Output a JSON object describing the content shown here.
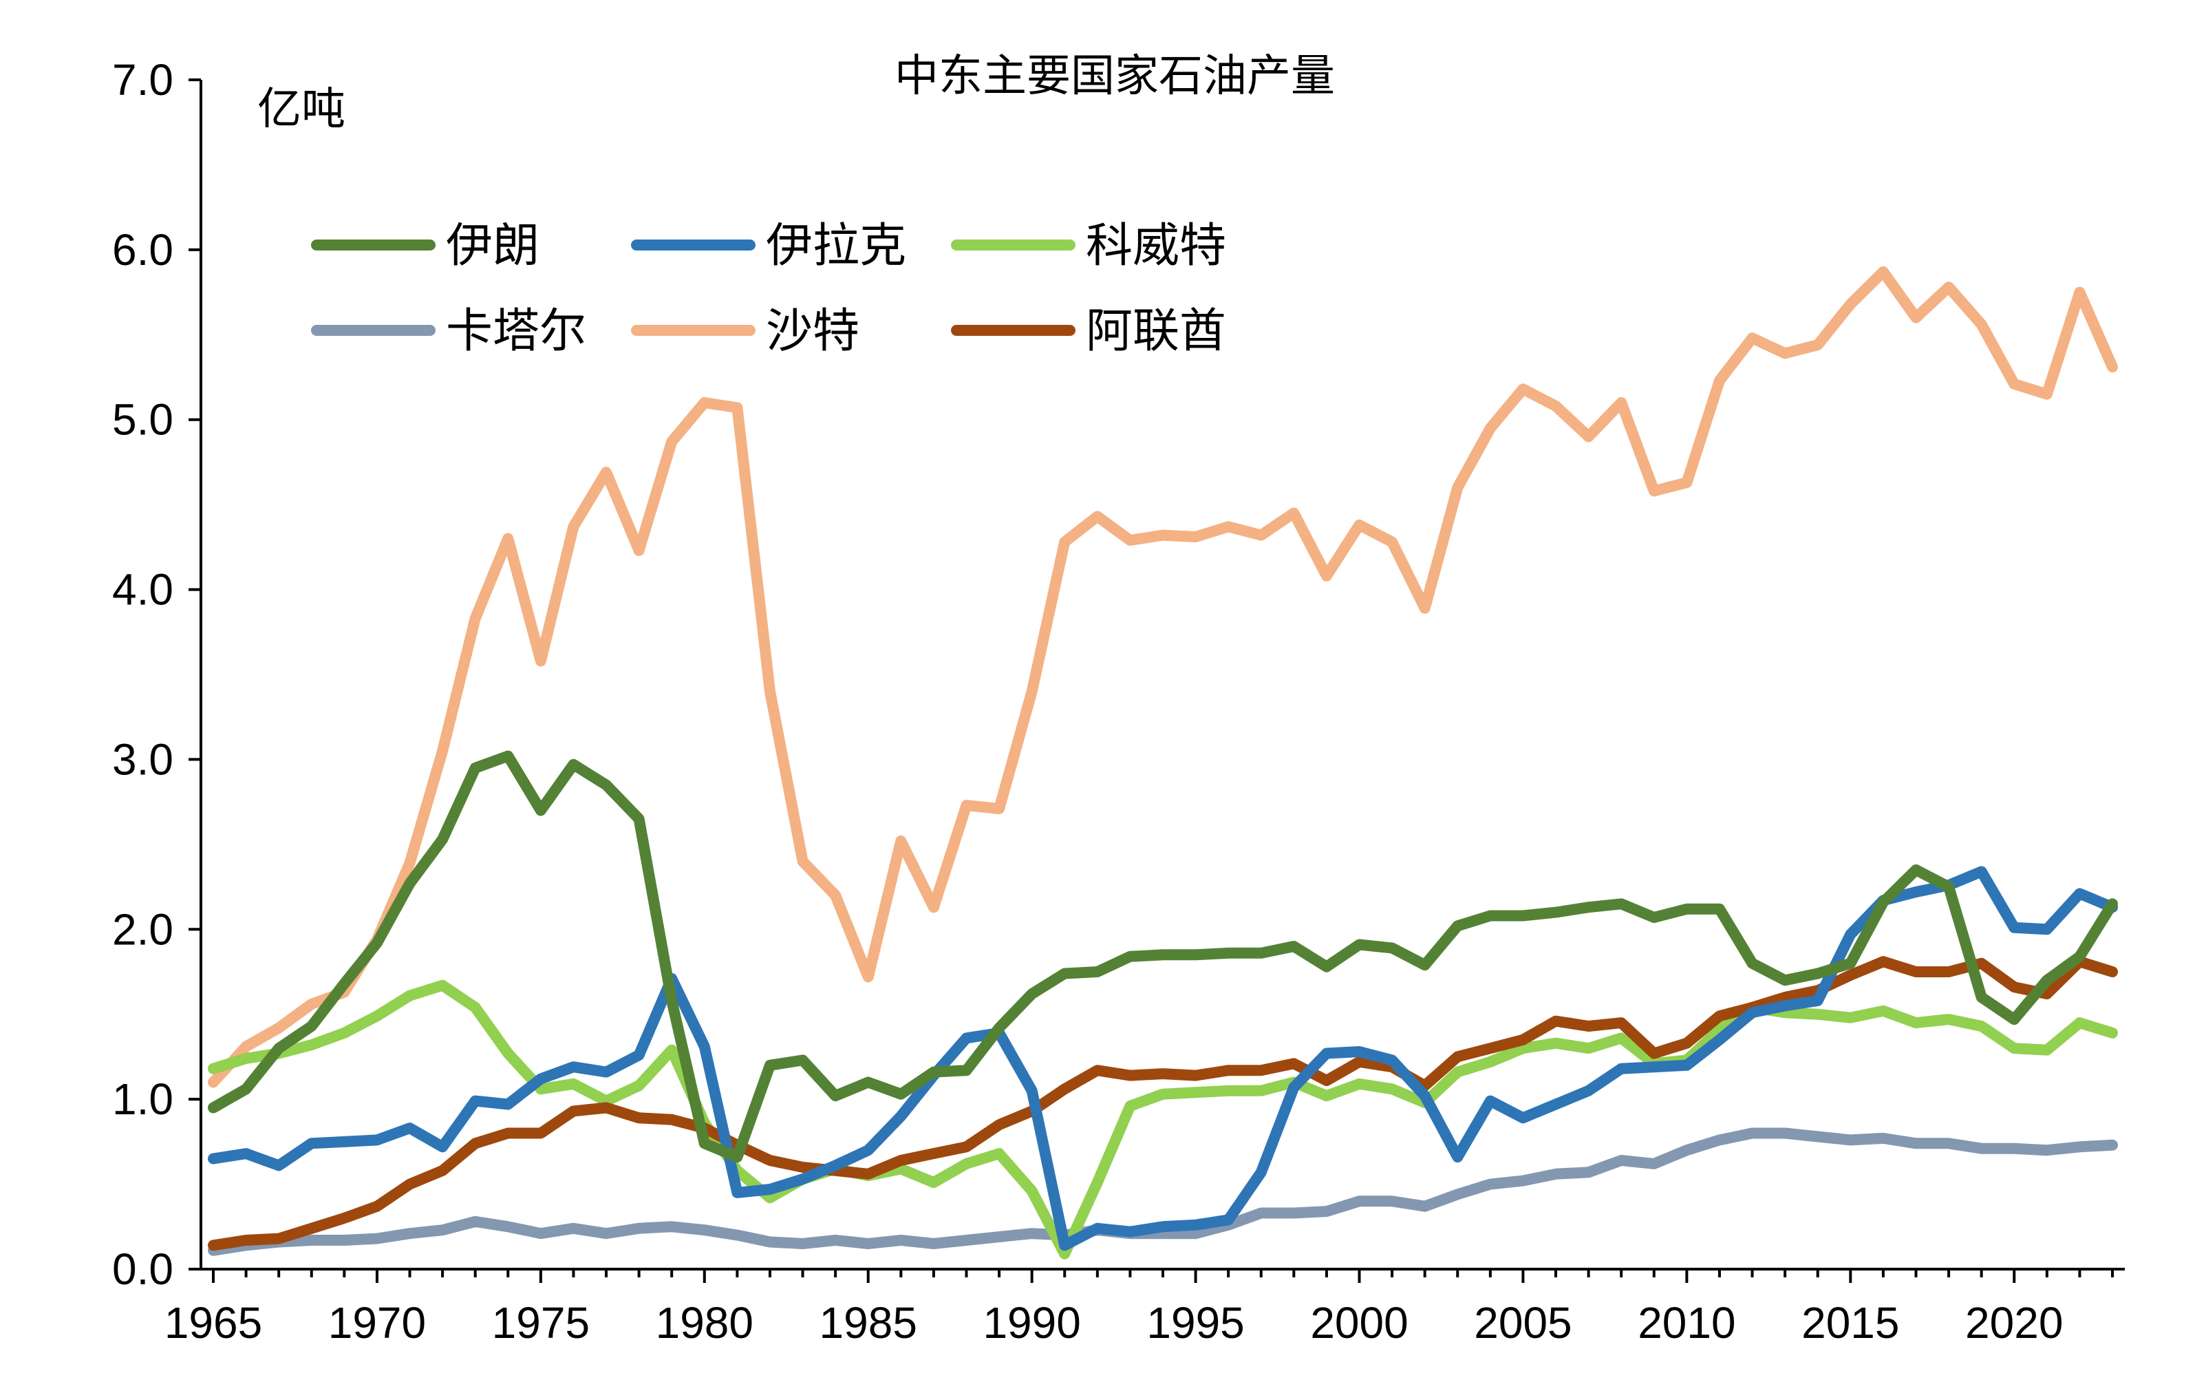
{
  "chart_data": {
    "type": "line",
    "title": "中东主要国家石油产量",
    "ylabel": "亿吨",
    "xlabel": "",
    "xlim": [
      1965,
      2023
    ],
    "ylim": [
      0,
      7
    ],
    "y_ticks": [
      "0.0",
      "1.0",
      "2.0",
      "3.0",
      "4.0",
      "5.0",
      "6.0",
      "7.0"
    ],
    "x_ticks": [
      "1965",
      "1970",
      "1975",
      "1980",
      "1985",
      "1990",
      "1995",
      "2000",
      "2005",
      "2010",
      "2015",
      "2020"
    ],
    "grid": false,
    "legend_position": "top-left",
    "x": [
      1965,
      1966,
      1967,
      1968,
      1969,
      1970,
      1971,
      1972,
      1973,
      1974,
      1975,
      1976,
      1977,
      1978,
      1979,
      1980,
      1981,
      1982,
      1983,
      1984,
      1985,
      1986,
      1987,
      1988,
      1989,
      1990,
      1991,
      1992,
      1993,
      1994,
      1995,
      1996,
      1997,
      1998,
      1999,
      2000,
      2001,
      2002,
      2003,
      2004,
      2005,
      2006,
      2007,
      2008,
      2009,
      2010,
      2011,
      2012,
      2013,
      2014,
      2015,
      2016,
      2017,
      2018,
      2019,
      2020,
      2021,
      2022,
      2023
    ],
    "series": [
      {
        "name": "伊朗",
        "color": "#548235",
        "values": [
          0.95,
          1.06,
          1.3,
          1.43,
          1.68,
          1.92,
          2.27,
          2.53,
          2.95,
          3.02,
          2.7,
          2.97,
          2.85,
          2.65,
          1.58,
          0.74,
          0.66,
          1.2,
          1.23,
          1.02,
          1.1,
          1.03,
          1.16,
          1.17,
          1.42,
          1.62,
          1.74,
          1.75,
          1.84,
          1.85,
          1.85,
          1.86,
          1.86,
          1.9,
          1.78,
          1.91,
          1.89,
          1.79,
          2.02,
          2.08,
          2.08,
          2.1,
          2.13,
          2.15,
          2.07,
          2.12,
          2.12,
          1.8,
          1.7,
          1.74,
          1.8,
          2.16,
          2.35,
          2.25,
          1.6,
          1.47,
          1.7,
          1.84,
          2.15
        ]
      },
      {
        "name": "伊拉克",
        "color": "#2e75b6",
        "values": [
          0.65,
          0.68,
          0.61,
          0.74,
          0.75,
          0.76,
          0.83,
          0.72,
          0.99,
          0.97,
          1.12,
          1.19,
          1.16,
          1.26,
          1.71,
          1.31,
          0.45,
          0.47,
          0.53,
          0.61,
          0.7,
          0.9,
          1.14,
          1.36,
          1.39,
          1.05,
          0.14,
          0.24,
          0.22,
          0.25,
          0.26,
          0.29,
          0.57,
          1.07,
          1.27,
          1.28,
          1.23,
          1.02,
          0.66,
          0.99,
          0.89,
          0.97,
          1.05,
          1.18,
          1.19,
          1.2,
          1.35,
          1.51,
          1.55,
          1.58,
          1.97,
          2.17,
          2.22,
          2.26,
          2.34,
          2.01,
          2.0,
          2.21,
          2.13
        ]
      },
      {
        "name": "科威特",
        "color": "#92d050",
        "values": [
          1.18,
          1.24,
          1.27,
          1.32,
          1.39,
          1.49,
          1.61,
          1.67,
          1.54,
          1.27,
          1.06,
          1.09,
          0.99,
          1.08,
          1.29,
          0.86,
          0.58,
          0.42,
          0.53,
          0.59,
          0.55,
          0.59,
          0.51,
          0.62,
          0.68,
          0.46,
          0.09,
          0.51,
          0.96,
          1.03,
          1.04,
          1.05,
          1.05,
          1.1,
          1.02,
          1.09,
          1.06,
          0.98,
          1.16,
          1.22,
          1.3,
          1.33,
          1.3,
          1.36,
          1.21,
          1.23,
          1.41,
          1.54,
          1.51,
          1.5,
          1.48,
          1.52,
          1.45,
          1.47,
          1.43,
          1.3,
          1.29,
          1.45,
          1.39
        ]
      },
      {
        "name": "卡塔尔",
        "color": "#8497b0",
        "values": [
          0.11,
          0.14,
          0.16,
          0.17,
          0.17,
          0.18,
          0.21,
          0.23,
          0.28,
          0.25,
          0.21,
          0.24,
          0.21,
          0.24,
          0.25,
          0.23,
          0.2,
          0.16,
          0.15,
          0.17,
          0.15,
          0.17,
          0.15,
          0.17,
          0.19,
          0.21,
          0.2,
          0.23,
          0.21,
          0.21,
          0.21,
          0.26,
          0.33,
          0.33,
          0.34,
          0.4,
          0.4,
          0.37,
          0.44,
          0.5,
          0.52,
          0.56,
          0.57,
          0.64,
          0.62,
          0.7,
          0.76,
          0.8,
          0.8,
          0.78,
          0.76,
          0.77,
          0.74,
          0.74,
          0.71,
          0.71,
          0.7,
          0.72,
          0.73
        ]
      },
      {
        "name": "沙特",
        "color": "#f4b183",
        "values": [
          1.1,
          1.31,
          1.42,
          1.56,
          1.63,
          1.94,
          2.39,
          3.05,
          3.83,
          4.3,
          3.58,
          4.37,
          4.69,
          4.23,
          4.87,
          5.1,
          5.07,
          3.4,
          2.4,
          2.2,
          1.72,
          2.52,
          2.13,
          2.73,
          2.71,
          3.4,
          4.28,
          4.43,
          4.29,
          4.32,
          4.31,
          4.37,
          4.32,
          4.45,
          4.08,
          4.38,
          4.28,
          3.89,
          4.6,
          4.95,
          5.18,
          5.08,
          4.9,
          5.1,
          4.58,
          4.63,
          5.23,
          5.48,
          5.39,
          5.44,
          5.68,
          5.87,
          5.6,
          5.78,
          5.56,
          5.21,
          5.15,
          5.75,
          5.31
        ]
      },
      {
        "name": "阿联酋",
        "color": "#9e480e",
        "values": [
          0.14,
          0.17,
          0.18,
          0.24,
          0.3,
          0.37,
          0.5,
          0.58,
          0.74,
          0.8,
          0.8,
          0.93,
          0.95,
          0.89,
          0.88,
          0.83,
          0.73,
          0.64,
          0.6,
          0.58,
          0.56,
          0.64,
          0.68,
          0.72,
          0.85,
          0.93,
          1.06,
          1.17,
          1.14,
          1.15,
          1.14,
          1.17,
          1.17,
          1.21,
          1.11,
          1.22,
          1.19,
          1.08,
          1.25,
          1.3,
          1.35,
          1.46,
          1.43,
          1.45,
          1.27,
          1.33,
          1.49,
          1.54,
          1.6,
          1.64,
          1.73,
          1.81,
          1.75,
          1.75,
          1.8,
          1.66,
          1.62,
          1.81,
          1.75
        ]
      }
    ]
  }
}
